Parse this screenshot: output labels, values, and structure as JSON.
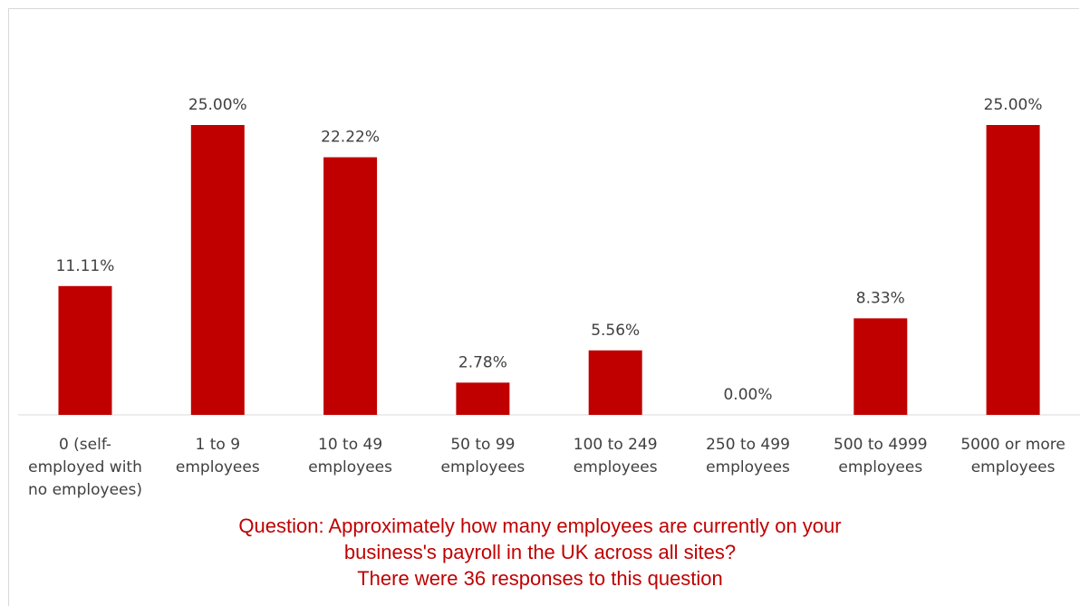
{
  "chart_data": {
    "type": "bar",
    "categories": [
      [
        "0 (self-",
        "employed with",
        "no employees)"
      ],
      [
        "1 to 9",
        "employees"
      ],
      [
        "10 to 49",
        "employees"
      ],
      [
        "50 to 99",
        "employees"
      ],
      [
        "100 to 249",
        "employees"
      ],
      [
        "250 to 499",
        "employees"
      ],
      [
        "500 to 4999",
        "employees"
      ],
      [
        "5000 or more",
        "employees"
      ]
    ],
    "values": [
      11.11,
      25.0,
      22.22,
      2.78,
      5.56,
      0.0,
      8.33,
      25.0
    ],
    "value_labels": [
      "11.11%",
      "25.00%",
      "22.22%",
      "2.78%",
      "5.56%",
      "0.00%",
      "8.33%",
      "25.00%"
    ],
    "ylim": [
      0,
      25
    ],
    "bar_color": "#c00000",
    "grid": false,
    "legend": "none"
  },
  "caption": {
    "line1": "Question: Approximately how many employees are currently on your",
    "line2": "business's payroll in the UK across all sites?",
    "line3": "There were 36 responses to this question"
  }
}
